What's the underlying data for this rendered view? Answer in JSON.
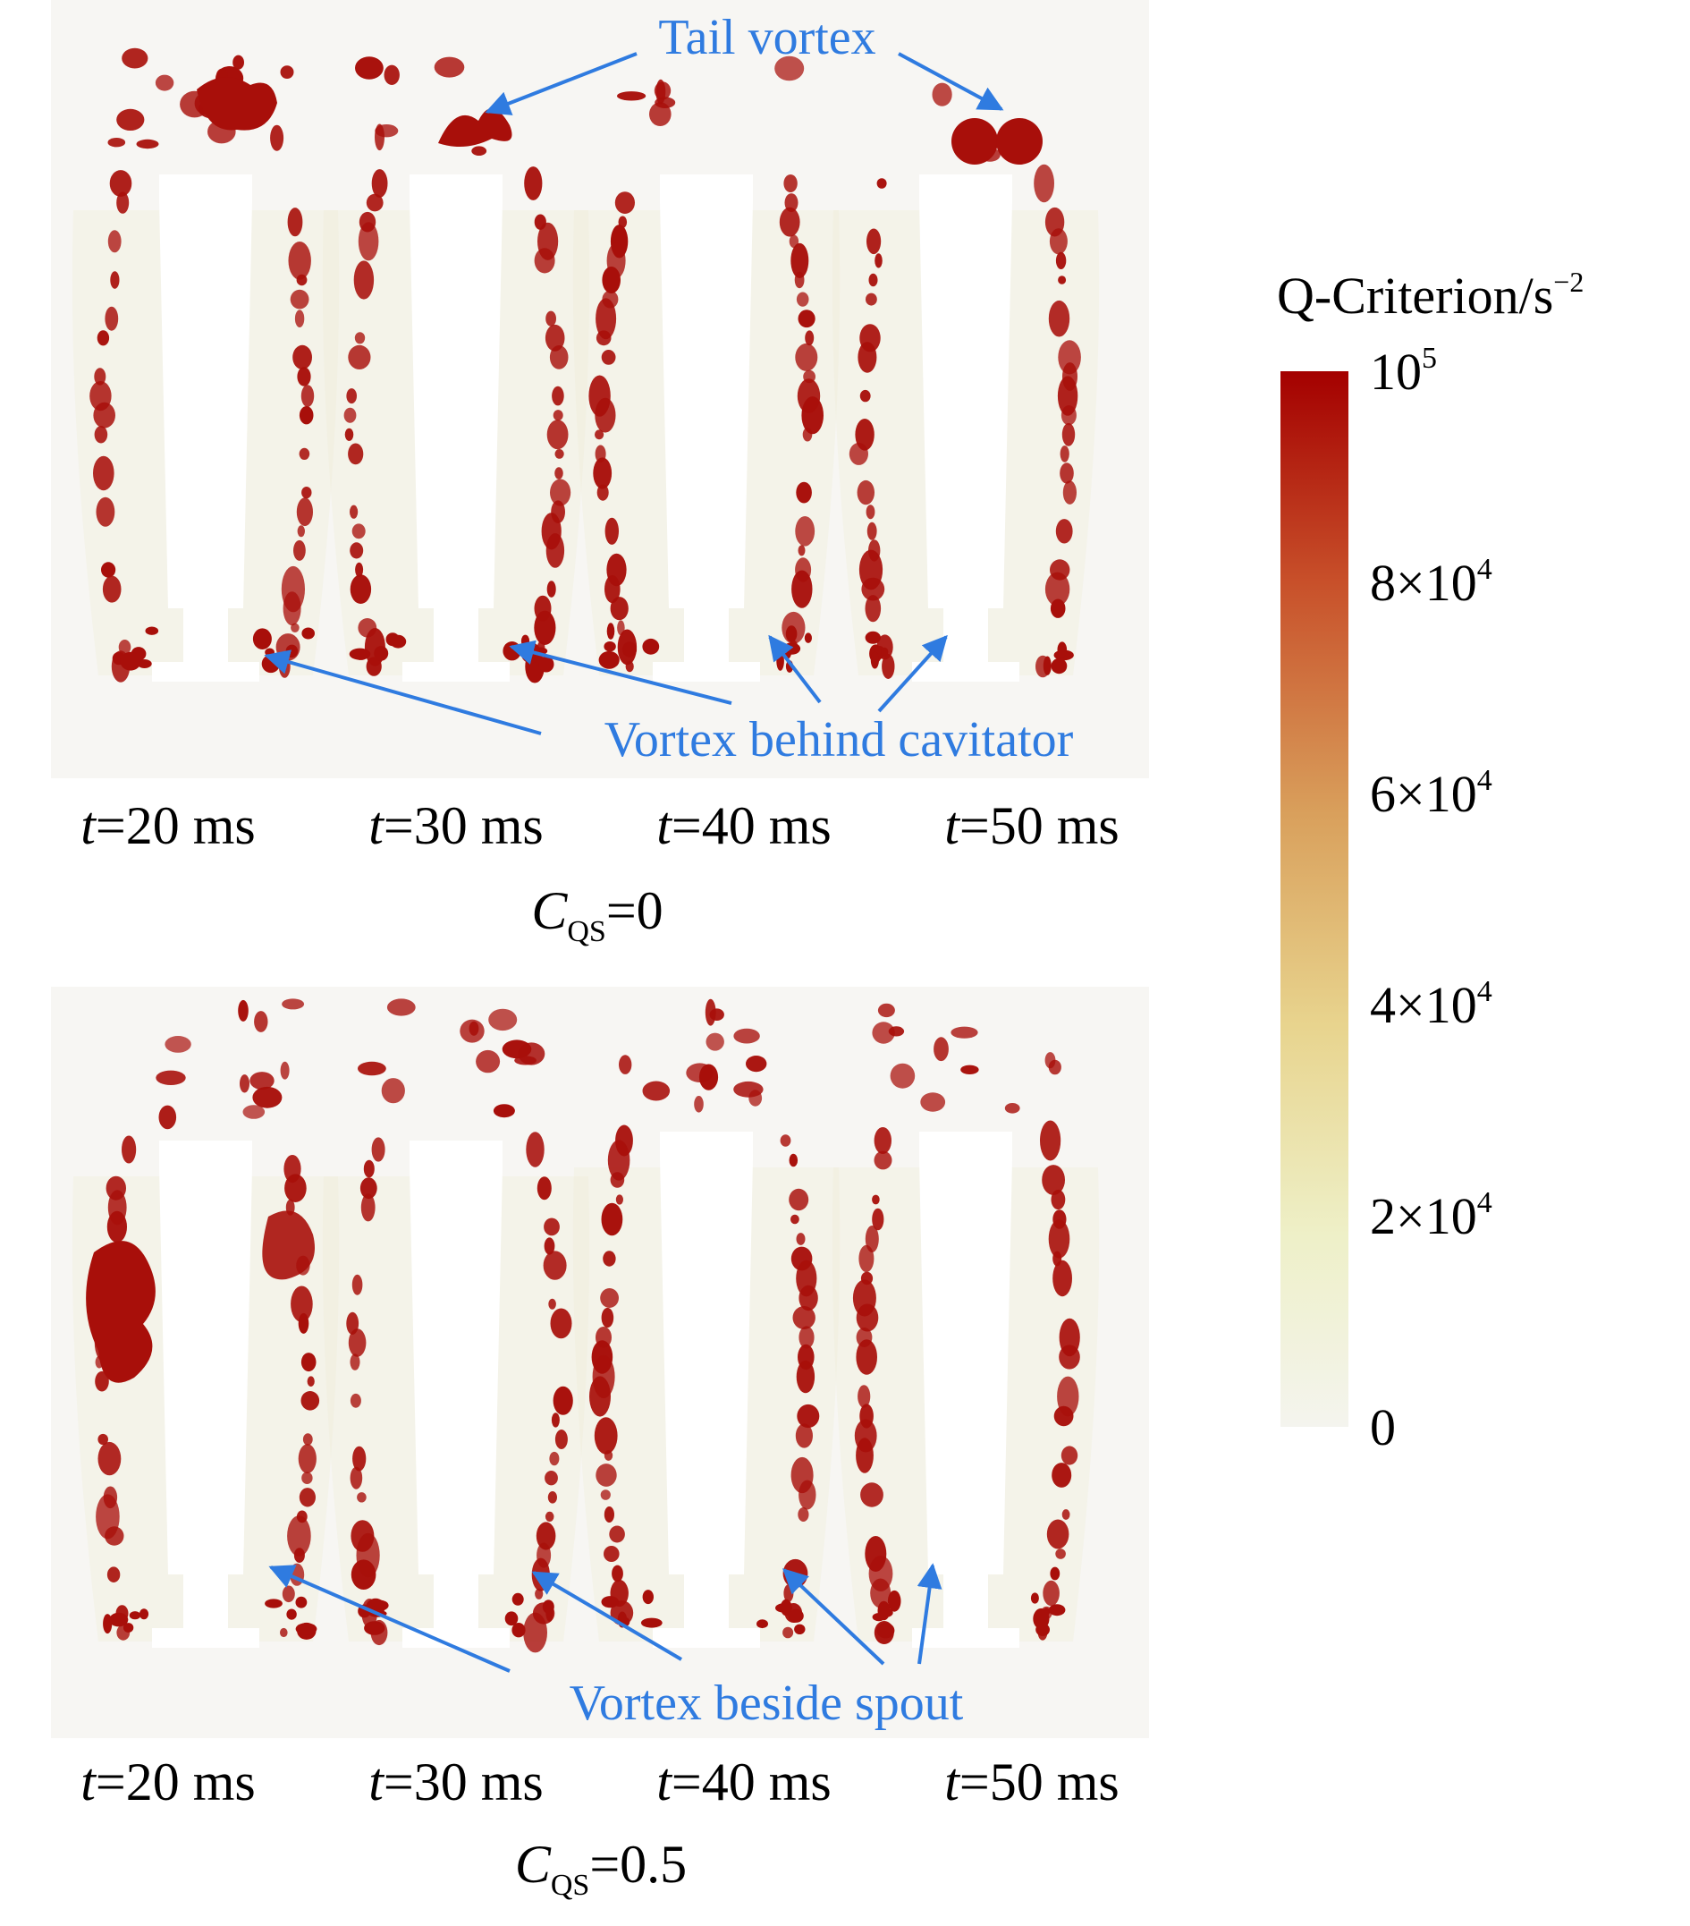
{
  "annotations": {
    "tail_vortex": "Tail vortex",
    "vortex_behind_cavitator": "Vortex behind cavitator",
    "vortex_beside_spout": "Vortex beside spout"
  },
  "time_labels": {
    "italic_var": "t",
    "values": [
      "=20 ms",
      "=30 ms",
      "=40 ms",
      "=50 ms"
    ]
  },
  "conditions": {
    "symbol": "C",
    "subscript": "QS",
    "top_value": "=0",
    "bottom_value": "=0.5"
  },
  "colorbar": {
    "title": "Q-Criterion/s",
    "title_exp": "−2",
    "ticks": [
      {
        "mantissa": "10",
        "exp": "5",
        "value": 100000
      },
      {
        "mantissa": "8×10",
        "exp": "4",
        "value": 80000
      },
      {
        "mantissa": "6×10",
        "exp": "4",
        "value": 60000
      },
      {
        "mantissa": "4×10",
        "exp": "4",
        "value": 40000
      },
      {
        "mantissa": "2×10",
        "exp": "4",
        "value": 20000
      },
      {
        "mantissa": "0",
        "exp": "",
        "value": 0
      }
    ],
    "colors": [
      "#a40000",
      "#c8502a",
      "#d9a05c",
      "#e8d48e",
      "#eef0c8",
      "#f4f4ee"
    ]
  },
  "colors": {
    "annotation_blue": "#2f7be0",
    "vortex_red": "#a80f0a",
    "panel_bg": "#f7f6f3"
  }
}
